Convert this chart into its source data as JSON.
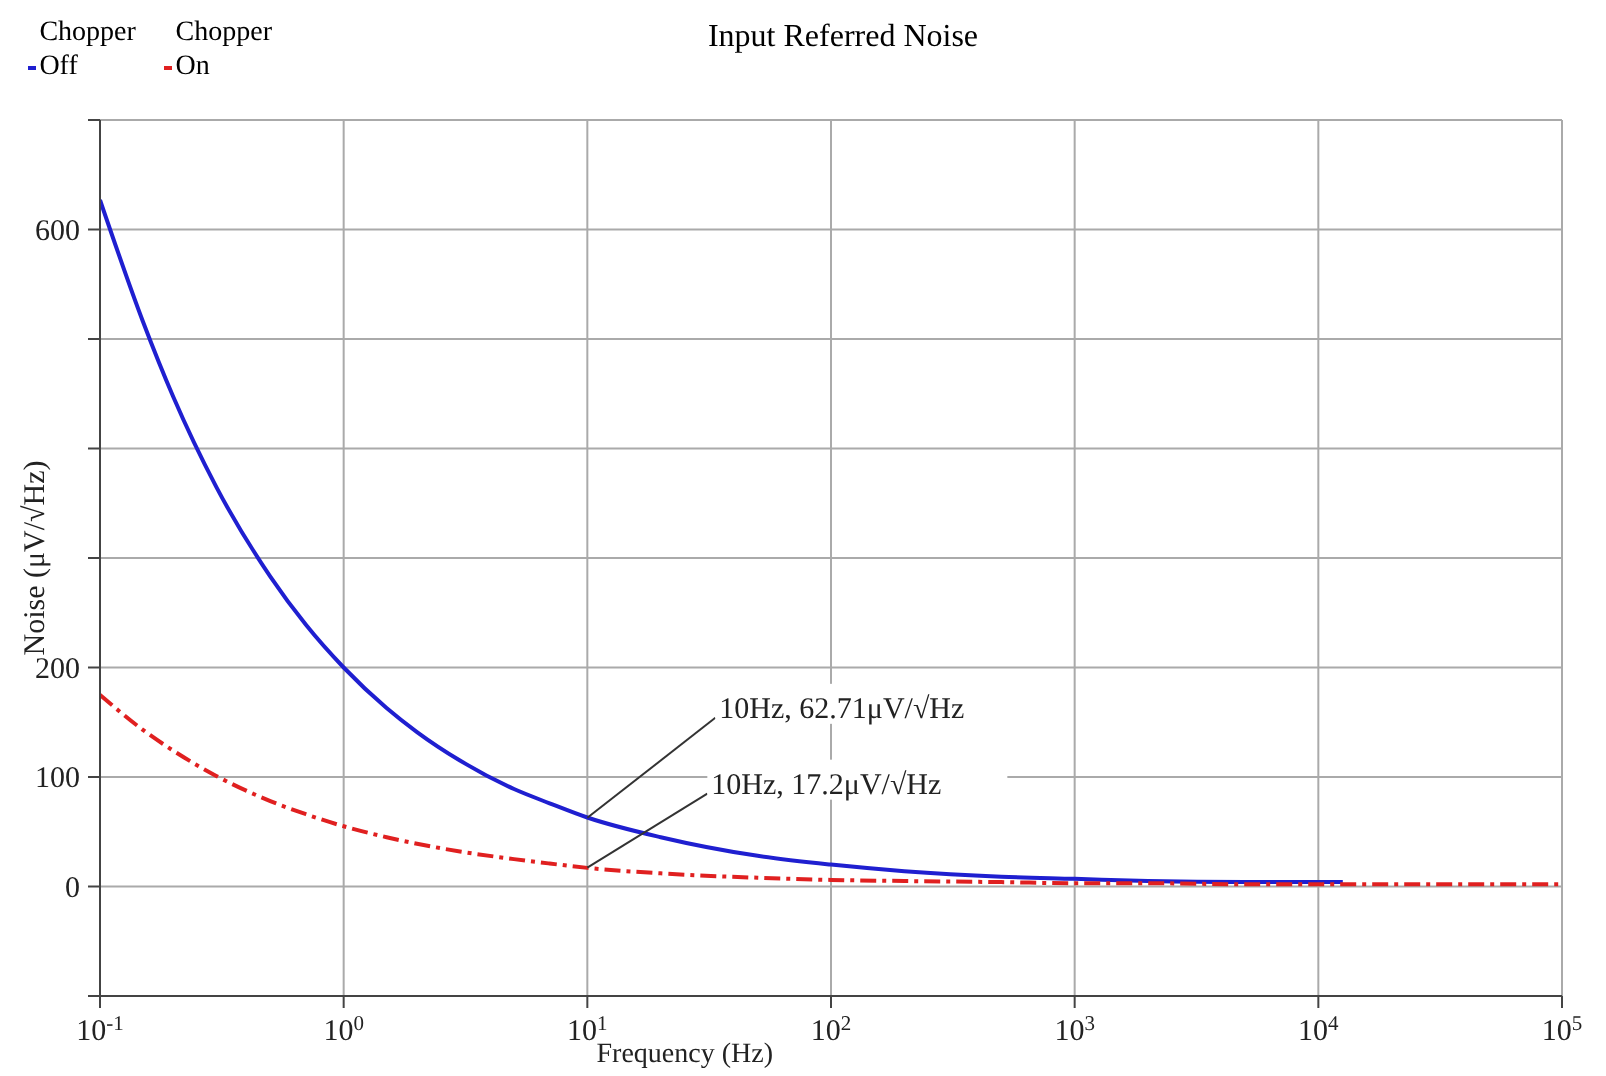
{
  "chart_data": {
    "type": "line",
    "title": "Input Referred Noise",
    "xlabel": "Frequency (Hz)",
    "ylabel": "Noise (μV/√Hz)",
    "log": "x",
    "grid": true,
    "legend": "top left",
    "marker": "none",
    "xlim": [
      0.1,
      100000
    ],
    "xticks": [
      {
        "value": 0.1,
        "label": "10$^{-1}$"
      },
      {
        "value": 1,
        "label": "10$^{0}$"
      },
      {
        "value": 10,
        "label": "10$^{1}$"
      },
      {
        "value": 100,
        "label": "10$^{2}$"
      },
      {
        "value": 1000,
        "label": "10$^{3}$"
      },
      {
        "value": 10000,
        "label": "10$^{4}$"
      },
      {
        "value": 100000,
        "label": "10$^{5}$"
      }
    ],
    "ylim": [
      -100,
      700
    ],
    "yticks": [
      {
        "value": -100,
        "label": null
      },
      0,
      100,
      200,
      {
        "value": 300,
        "label": null
      },
      {
        "value": 400,
        "label": null
      },
      {
        "value": 500,
        "label": null
      },
      600,
      {
        "value": 700,
        "label": null
      }
    ],
    "series": [
      {
        "name": "Chopper Off",
        "color": "#1f1fd0",
        "line_style": "solid",
        "x": [
          0.1,
          0.15,
          0.2,
          0.3,
          0.5,
          0.7,
          1,
          1.5,
          2,
          3,
          5,
          7,
          10,
          20,
          50,
          100,
          200,
          500,
          1000,
          2000,
          5000,
          10000,
          12600
        ],
        "values": [
          627,
          516,
          447,
          365,
          283,
          239,
          200,
          163,
          141,
          115,
          89,
          76,
          63,
          45,
          28,
          20,
          14,
          9,
          7,
          5,
          4,
          4,
          4
        ]
      },
      {
        "name": "Chopper On",
        "color": "#e02020",
        "line_style": "dashed",
        "x": [
          0.1,
          0.15,
          0.2,
          0.3,
          0.5,
          0.7,
          1,
          1.5,
          2,
          3,
          5,
          7,
          10,
          20,
          50,
          100,
          200,
          500,
          1000,
          2000,
          5000,
          10000,
          100000
        ],
        "values": [
          175,
          143,
          124,
          101,
          78,
          66,
          55,
          45,
          39,
          32,
          25,
          21,
          17,
          12,
          8,
          6,
          5,
          4,
          3,
          3,
          2,
          2,
          2
        ]
      }
    ],
    "annotations": [
      {
        "text": "10Hz, 62.71μV/√Hz",
        "x": 10,
        "y": 62.71
      },
      {
        "text": "10Hz, 17.2μV/√Hz",
        "x": 10,
        "y": 17.2
      }
    ]
  }
}
